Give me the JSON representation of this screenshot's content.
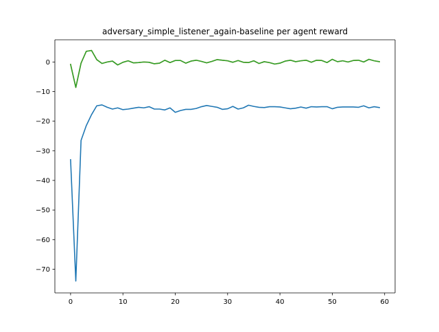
{
  "chart_data": {
    "type": "line",
    "title": "adversary_simple_listener_again-baseline per agent reward",
    "xlabel": "",
    "ylabel": "",
    "xlim": [
      -3,
      62
    ],
    "ylim": [
      -78,
      7.5
    ],
    "x_ticks": [
      0,
      10,
      20,
      30,
      40,
      50,
      60
    ],
    "y_ticks": [
      0,
      -10,
      -20,
      -30,
      -40,
      -50,
      -60,
      -70
    ],
    "x_tick_labels": [
      "0",
      "10",
      "20",
      "30",
      "40",
      "50",
      "60"
    ],
    "y_tick_labels": [
      "0",
      "−10",
      "−20",
      "−30",
      "−40",
      "−50",
      "−60",
      "−70"
    ],
    "grid": false,
    "legend": "none",
    "series": [
      {
        "color": "#1f77b4",
        "x": [
          0,
          1,
          2,
          3,
          4,
          5,
          6,
          7,
          8,
          9,
          10,
          11,
          12,
          13,
          14,
          15,
          16,
          17,
          18,
          19,
          20,
          21,
          22,
          23,
          24,
          25,
          26,
          27,
          28,
          29,
          30,
          31,
          32,
          33,
          34,
          35,
          36,
          37,
          38,
          39,
          40,
          41,
          42,
          43,
          44,
          45,
          46,
          47,
          48,
          49,
          50,
          51,
          52,
          53,
          54,
          55,
          56,
          57,
          58,
          59
        ],
        "values": [
          -33.0,
          -74.0,
          -26.5,
          -21.5,
          -17.8,
          -14.8,
          -14.5,
          -15.3,
          -15.9,
          -15.5,
          -16.1,
          -15.9,
          -15.6,
          -15.3,
          -15.5,
          -15.1,
          -15.9,
          -15.9,
          -16.2,
          -15.5,
          -17.0,
          -16.4,
          -16.0,
          -16.0,
          -15.7,
          -15.1,
          -14.7,
          -15.0,
          -15.3,
          -16.0,
          -15.8,
          -15.0,
          -15.9,
          -15.5,
          -14.6,
          -15.0,
          -15.3,
          -15.4,
          -15.1,
          -15.1,
          -15.2,
          -15.5,
          -15.8,
          -15.6,
          -15.2,
          -15.6,
          -15.1,
          -15.2,
          -15.1,
          -15.1,
          -15.8,
          -15.3,
          -15.2,
          -15.2,
          -15.2,
          -15.3,
          -14.8,
          -15.5,
          -15.1,
          -15.4
        ]
      },
      {
        "color": "#ff7f0e",
        "x": [
          0,
          1,
          2,
          3,
          4,
          5,
          6,
          7,
          8,
          9,
          10,
          11,
          12,
          13,
          14,
          15,
          16,
          17,
          18,
          19,
          20,
          21,
          22,
          23,
          24,
          25,
          26,
          27,
          28,
          29,
          30,
          31,
          32,
          33,
          34,
          35,
          36,
          37,
          38,
          39,
          40,
          41,
          42,
          43,
          44,
          45,
          46,
          47,
          48,
          49,
          50,
          51,
          52,
          53,
          54,
          55,
          56,
          57,
          58,
          59
        ],
        "values": [
          -0.8,
          -8.6,
          -0.4,
          3.6,
          3.9,
          0.8,
          -0.5,
          0.0,
          0.3,
          -1.0,
          -0.1,
          0.4,
          -0.3,
          -0.2,
          0.0,
          -0.1,
          -0.6,
          -0.4,
          0.6,
          -0.2,
          0.5,
          0.5,
          -0.4,
          0.3,
          0.6,
          0.2,
          -0.3,
          0.2,
          0.8,
          0.6,
          0.4,
          -0.1,
          0.5,
          -0.1,
          -0.2,
          0.4,
          -0.5,
          0.1,
          -0.2,
          -0.7,
          -0.4,
          0.3,
          0.6,
          0.1,
          0.4,
          0.6,
          -0.1,
          0.6,
          0.5,
          -0.2,
          0.9,
          0.1,
          0.4,
          0.0,
          0.5,
          0.6,
          0.0,
          0.9,
          0.4,
          0.1
        ]
      },
      {
        "color": "#2ca02c",
        "x": [
          0,
          1,
          2,
          3,
          4,
          5,
          6,
          7,
          8,
          9,
          10,
          11,
          12,
          13,
          14,
          15,
          16,
          17,
          18,
          19,
          20,
          21,
          22,
          23,
          24,
          25,
          26,
          27,
          28,
          29,
          30,
          31,
          32,
          33,
          34,
          35,
          36,
          37,
          38,
          39,
          40,
          41,
          42,
          43,
          44,
          45,
          46,
          47,
          48,
          49,
          50,
          51,
          52,
          53,
          54,
          55,
          56,
          57,
          58,
          59
        ],
        "values": [
          -0.8,
          -8.6,
          -0.4,
          3.6,
          3.9,
          0.8,
          -0.5,
          0.0,
          0.3,
          -1.0,
          -0.1,
          0.4,
          -0.3,
          -0.2,
          0.0,
          -0.1,
          -0.6,
          -0.4,
          0.6,
          -0.2,
          0.5,
          0.5,
          -0.4,
          0.3,
          0.6,
          0.2,
          -0.3,
          0.2,
          0.8,
          0.6,
          0.4,
          -0.1,
          0.5,
          -0.1,
          -0.2,
          0.4,
          -0.5,
          0.1,
          -0.2,
          -0.7,
          -0.4,
          0.3,
          0.6,
          0.1,
          0.4,
          0.6,
          -0.1,
          0.6,
          0.5,
          -0.2,
          0.9,
          0.1,
          0.4,
          0.0,
          0.5,
          0.6,
          0.0,
          0.9,
          0.4,
          0.1
        ]
      }
    ]
  }
}
